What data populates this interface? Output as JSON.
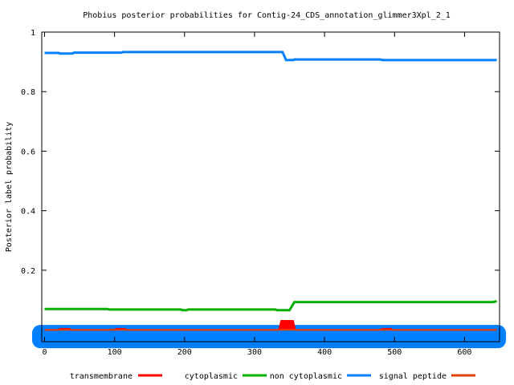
{
  "chart_data": {
    "type": "line",
    "title": "Phobius posterior probabilities for Contig-24_CDS_annotation_glimmer3Xpl_2_1",
    "xlabel": "",
    "ylabel": "Posterior label probability",
    "xlim": [
      -4,
      650
    ],
    "ylim": [
      -0.04,
      1.0
    ],
    "x_ticks": [
      0,
      100,
      200,
      300,
      400,
      500,
      600
    ],
    "x_tick_labels": [
      "0",
      "100",
      "200",
      "300",
      "400",
      "500",
      "600"
    ],
    "y_ticks": [
      0.2,
      0.4,
      0.6,
      0.8,
      1.0
    ],
    "y_tick_labels": [
      "0.2",
      "0.4",
      "0.6",
      "0.8",
      "1"
    ],
    "grid": false,
    "legend_position": "bottom",
    "series": [
      {
        "name": "transmembrane",
        "color": "#ff0000",
        "points": [
          [
            0,
            0.0
          ],
          [
            20,
            0.0
          ],
          [
            22,
            0.003
          ],
          [
            35,
            0.003
          ],
          [
            37,
            0.0
          ],
          [
            100,
            0.0
          ],
          [
            102,
            0.003
          ],
          [
            115,
            0.003
          ],
          [
            117,
            0.0
          ],
          [
            335,
            0.0
          ],
          [
            338,
            0.03
          ],
          [
            355,
            0.03
          ],
          [
            358,
            0.0
          ],
          [
            480,
            0.0
          ],
          [
            482,
            0.003
          ],
          [
            495,
            0.003
          ],
          [
            497,
            0.0
          ],
          [
            646,
            0.0
          ]
        ]
      },
      {
        "name": "cytoplasmic",
        "color": "#00b000",
        "points": [
          [
            0,
            0.07
          ],
          [
            90,
            0.07
          ],
          [
            92,
            0.068
          ],
          [
            195,
            0.068
          ],
          [
            197,
            0.066
          ],
          [
            203,
            0.066
          ],
          [
            205,
            0.068
          ],
          [
            330,
            0.068
          ],
          [
            332,
            0.066
          ],
          [
            350,
            0.066
          ],
          [
            357,
            0.093
          ],
          [
            640,
            0.093
          ],
          [
            646,
            0.096
          ]
        ]
      },
      {
        "name": "non cytoplasmic",
        "color": "#0080ff",
        "points": [
          [
            0,
            0.93
          ],
          [
            20,
            0.93
          ],
          [
            22,
            0.928
          ],
          [
            40,
            0.928
          ],
          [
            42,
            0.931
          ],
          [
            110,
            0.931
          ],
          [
            112,
            0.933
          ],
          [
            340,
            0.933
          ],
          [
            345,
            0.906
          ],
          [
            355,
            0.906
          ],
          [
            357,
            0.908
          ],
          [
            480,
            0.908
          ],
          [
            482,
            0.906
          ],
          [
            646,
            0.906
          ]
        ]
      },
      {
        "name": "signal peptide",
        "color": "#e04000",
        "points": [
          [
            0,
            0.0
          ],
          [
            646,
            0.0
          ]
        ]
      }
    ]
  }
}
